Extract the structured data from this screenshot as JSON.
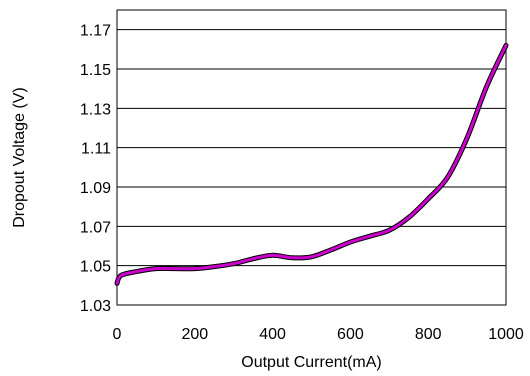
{
  "chart_data": {
    "type": "line",
    "title": "",
    "xlabel": "Output Current(mA)",
    "ylabel": "Dropout Voltage (V)",
    "xlim": [
      0,
      1000
    ],
    "ylim": [
      1.03,
      1.18
    ],
    "x_ticks": [
      "0",
      "200",
      "400",
      "600",
      "800",
      "1000"
    ],
    "y_ticks": [
      "1.03",
      "1.05",
      "1.07",
      "1.09",
      "1.11",
      "1.13",
      "1.15",
      "1.17"
    ],
    "grid": "horizontal",
    "legend": "none",
    "series": [
      {
        "color": "#cc00cc",
        "outline_color": "#000000",
        "x": [
          0,
          10,
          50,
          100,
          150,
          200,
          250,
          300,
          350,
          400,
          450,
          500,
          550,
          600,
          650,
          700,
          750,
          800,
          850,
          900,
          950,
          1000
        ],
        "y": [
          1.041,
          1.045,
          1.047,
          1.0485,
          1.0485,
          1.0485,
          1.0495,
          1.051,
          1.0535,
          1.0553,
          1.054,
          1.0545,
          1.058,
          1.062,
          1.065,
          1.068,
          1.0745,
          1.084,
          1.095,
          1.115,
          1.141,
          1.162
        ]
      }
    ]
  }
}
